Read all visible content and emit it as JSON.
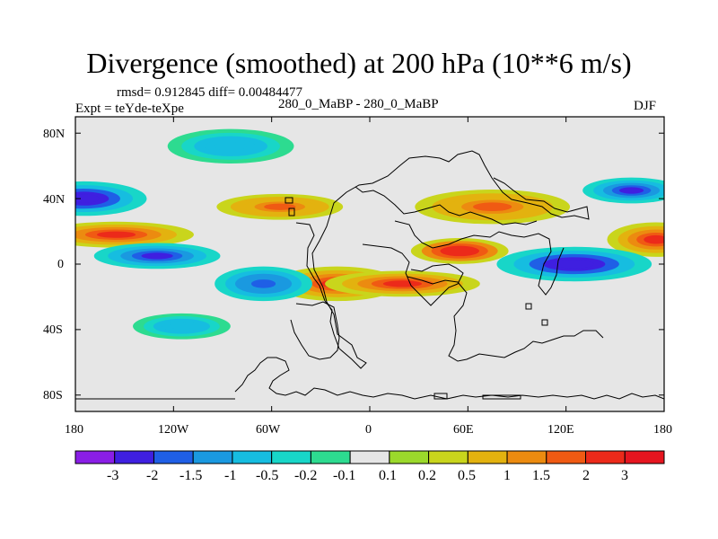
{
  "chart_data": {
    "type": "heatmap",
    "title": "Divergence (smoothed) at 200 hPa (10**6 m/s)",
    "stats": "rmsd= 0.912845 diff= 0.00484477",
    "left_label": "Expt = teYde-teXpe",
    "center_label": "280_0_MaBP - 280_0_MaBP",
    "right_label": "DJF",
    "xlim": [
      -180,
      180
    ],
    "ylim": [
      -90,
      90
    ],
    "x_ticks": [
      "180",
      "120W",
      "60W",
      "0",
      "60E",
      "120E",
      "180"
    ],
    "y_ticks": [
      "80N",
      "40N",
      "0",
      "40S",
      "80S"
    ],
    "colorbar": {
      "levels": [
        "-3",
        "-2",
        "-1.5",
        "-1",
        "-0.5",
        "-0.2",
        "-0.1",
        "0.1",
        "0.2",
        "0.5",
        "1",
        "1.5",
        "2",
        "3"
      ],
      "colors": [
        "#8a1ee6",
        "#3f1fe0",
        "#1f5fe6",
        "#1a99e0",
        "#16bde0",
        "#18d6c8",
        "#2ddb90",
        "#e6e6e6",
        "#9bd92b",
        "#c9d51c",
        "#e3b20f",
        "#ec8b10",
        "#f05a13",
        "#ec2a1a",
        "#e6151f"
      ]
    },
    "features": [
      {
        "lon": 160,
        "lat": 45,
        "value": -2.5
      },
      {
        "lon": -175,
        "lat": 40,
        "value": -2.8
      },
      {
        "lon": -155,
        "lat": 18,
        "value": 2.5
      },
      {
        "lon": 175,
        "lat": 15,
        "value": 2.5
      },
      {
        "lon": -130,
        "lat": 5,
        "value": -2.5
      },
      {
        "lon": 125,
        "lat": 0,
        "value": -2.8
      },
      {
        "lon": 55,
        "lat": 8,
        "value": 3.0
      },
      {
        "lon": -20,
        "lat": -12,
        "value": 2.5
      },
      {
        "lon": 20,
        "lat": -12,
        "value": 2.2
      },
      {
        "lon": -65,
        "lat": -12,
        "value": -2.0
      },
      {
        "lon": -55,
        "lat": 35,
        "value": 1.8
      },
      {
        "lon": 75,
        "lat": 35,
        "value": 1.6
      },
      {
        "lon": -115,
        "lat": -38,
        "value": -1.0
      },
      {
        "lon": -85,
        "lat": 72,
        "value": -1.0
      }
    ]
  }
}
